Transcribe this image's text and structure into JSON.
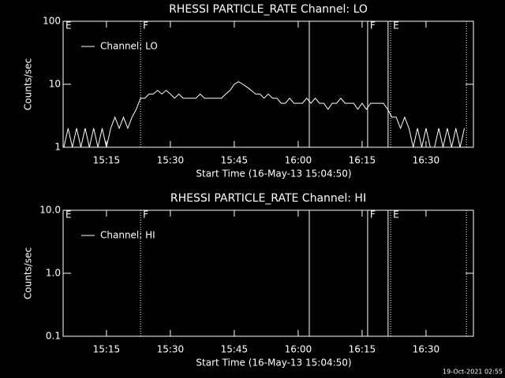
{
  "chart_data": [
    {
      "type": "line",
      "title": "RHESSI PARTICLE_RATE Channel: LO",
      "xlabel": "Start Time (16-May-13 15:04:50)",
      "ylabel": "Counts/sec",
      "log_y": true,
      "xlim": [
        904.83,
        1001.13
      ],
      "xticks": [
        {
          "value": 915,
          "label": "15:15"
        },
        {
          "value": 930,
          "label": "15:30"
        },
        {
          "value": 945,
          "label": "15:45"
        },
        {
          "value": 960,
          "label": "16:00"
        },
        {
          "value": 975,
          "label": "16:15"
        },
        {
          "value": 990,
          "label": "16:30"
        }
      ],
      "ylim": [
        1,
        100
      ],
      "yticks": [
        1,
        10,
        100
      ],
      "legend": "upper left",
      "x": [
        905,
        906,
        907,
        908,
        909,
        910,
        911,
        912,
        913,
        914,
        915,
        916,
        917,
        918,
        919,
        920,
        921,
        922,
        923,
        924,
        925,
        926,
        927,
        928,
        929,
        930,
        931,
        932,
        933,
        934,
        935,
        936,
        937,
        938,
        939,
        940,
        941,
        942,
        943,
        944,
        945,
        946,
        947,
        948,
        949,
        950,
        951,
        952,
        953,
        954,
        955,
        956,
        957,
        958,
        959,
        960,
        961,
        962,
        963,
        964,
        965,
        966,
        967,
        968,
        969,
        970,
        971,
        972,
        973,
        974,
        975,
        976,
        977,
        978,
        979,
        980,
        981,
        982,
        983,
        984,
        985,
        986,
        987,
        988,
        989,
        990,
        991,
        992,
        993,
        994,
        995,
        996,
        997,
        998,
        999
      ],
      "series": [
        {
          "name": "Channel: LO",
          "color": "#ffffff",
          "values": [
            1,
            2,
            1,
            2,
            1,
            2,
            1,
            2,
            1,
            2,
            1,
            2,
            3,
            2,
            3,
            2,
            3,
            4,
            6,
            6,
            7,
            7,
            8,
            7,
            8,
            7,
            6,
            7,
            6,
            6,
            6,
            6,
            7,
            6,
            6,
            6,
            6,
            6,
            7,
            8,
            10,
            11,
            10,
            9,
            8,
            7,
            7,
            6,
            7,
            6,
            6,
            5,
            5,
            6,
            5,
            5,
            5,
            6,
            5,
            6,
            5,
            5,
            4,
            5,
            5,
            6,
            5,
            5,
            5,
            4,
            5,
            4,
            5,
            5,
            5,
            5,
            4,
            3,
            3,
            2,
            3,
            2,
            1,
            2,
            1,
            2,
            1,
            1,
            2,
            1,
            2,
            1,
            2,
            1,
            2
          ]
        }
      ],
      "vlines": [
        {
          "x": 923.0,
          "style": "dotted"
        },
        {
          "x": 962.6,
          "style": "solid"
        },
        {
          "x": 976.3,
          "style": "solid"
        },
        {
          "x": 981.1,
          "style": "solid"
        },
        {
          "x": 981.7,
          "style": "dotted"
        },
        {
          "x": 999.5,
          "style": "dotted"
        }
      ],
      "vline_labels": [
        {
          "x": 904.83,
          "label": "E"
        },
        {
          "x": 923.0,
          "label": "F"
        },
        {
          "x": 976.3,
          "label": "F"
        },
        {
          "x": 981.7,
          "label": "E"
        }
      ]
    },
    {
      "type": "line",
      "title": "RHESSI PARTICLE_RATE Channel: HI",
      "xlabel": "Start Time (16-May-13 15:04:50)",
      "ylabel": "Counts/sec",
      "log_y": true,
      "xlim": [
        904.83,
        1001.13
      ],
      "xticks": [
        {
          "value": 915,
          "label": "15:15"
        },
        {
          "value": 930,
          "label": "15:30"
        },
        {
          "value": 945,
          "label": "15:45"
        },
        {
          "value": 960,
          "label": "16:00"
        },
        {
          "value": 975,
          "label": "16:15"
        },
        {
          "value": 990,
          "label": "16:30"
        }
      ],
      "ylim": [
        0.1,
        10
      ],
      "yticks": [
        0.1,
        {
          "value": 1,
          "label": "1.0"
        },
        {
          "value": 10,
          "label": "10.0"
        }
      ],
      "legend": "upper left",
      "x": [],
      "series": [
        {
          "name": "Channel: HI",
          "color": "#ffffff",
          "values": []
        }
      ],
      "vlines": [
        {
          "x": 923.0,
          "style": "dotted"
        },
        {
          "x": 962.6,
          "style": "solid"
        },
        {
          "x": 976.3,
          "style": "solid"
        },
        {
          "x": 981.1,
          "style": "solid"
        },
        {
          "x": 981.7,
          "style": "dotted"
        },
        {
          "x": 999.5,
          "style": "dotted"
        }
      ],
      "vline_labels": [
        {
          "x": 904.83,
          "label": "E"
        },
        {
          "x": 923.0,
          "label": "F"
        },
        {
          "x": 976.3,
          "label": "F"
        },
        {
          "x": 981.7,
          "label": "E"
        }
      ]
    }
  ],
  "footer": "19-Oct-2021 02:55"
}
